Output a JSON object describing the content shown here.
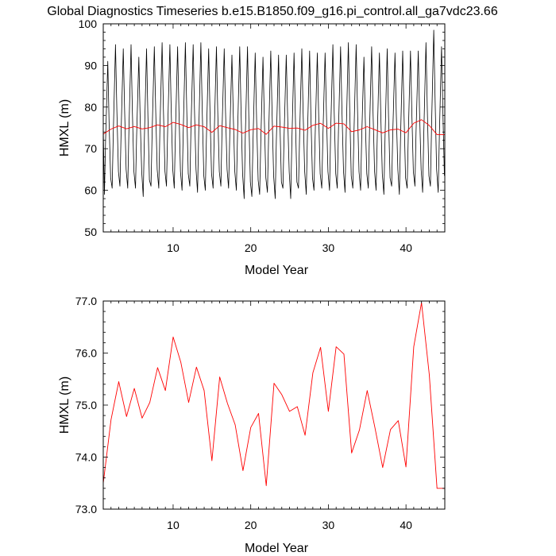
{
  "title": "Global Diagnostics Timeseries b.e15.B1850.f09_g16.pi_control.all_ga7vdc23.66",
  "colors": {
    "monthly": "#000000",
    "annual": "#ff0000",
    "axes": "#000000"
  },
  "chart_data": [
    {
      "type": "line",
      "xlabel": "Model Year",
      "ylabel": "HMXL (m)",
      "xlim": [
        1,
        45
      ],
      "ylim": [
        50,
        100
      ],
      "x_ticks": [
        10,
        20,
        30,
        40
      ],
      "y_ticks": [
        50,
        60,
        70,
        80,
        90,
        100
      ],
      "y_tick_labels": [
        "50",
        "60",
        "70",
        "80",
        "90",
        "100"
      ],
      "grid": false,
      "series": [
        {
          "color": "#000000",
          "seasonal_cycle": {
            "peaks": [
              91.0,
              95.0,
              94.0,
              95.0,
              92.0,
              94.0,
              94.5,
              95.5,
              95.0,
              94.5,
              95.5,
              95.0,
              95.5,
              94.0,
              94.5,
              94.0,
              92.5,
              94.5,
              94.5,
              93.0,
              92.0,
              93.5,
              92.5,
              92.5,
              93.0,
              94.0,
              93.5,
              93.0,
              93.0,
              95.0,
              94.5,
              95.5,
              95.0,
              92.0,
              94.5,
              93.0,
              94.0,
              93.0,
              93.5,
              93.5,
              93.5,
              95.5,
              98.5,
              94.5,
              91.0
            ],
            "troughs": [
              59.0,
              60.5,
              61.0,
              60.5,
              60.5,
              58.5,
              61.0,
              60.5,
              61.0,
              60.5,
              60.0,
              61.0,
              59.5,
              60.0,
              60.5,
              61.0,
              60.5,
              60.0,
              58.0,
              58.5,
              59.0,
              59.5,
              58.0,
              60.5,
              58.0,
              60.5,
              59.0,
              60.0,
              60.5,
              60.0,
              60.5,
              59.5,
              60.5,
              60.0,
              60.5,
              60.0,
              59.0,
              61.0,
              59.0,
              60.5,
              61.0,
              59.5,
              61.0,
              59.5,
              58.5
            ]
          }
        },
        {
          "color": "#ff0000",
          "x": [
            1,
            2,
            3,
            4,
            5,
            6,
            7,
            8,
            9,
            10,
            11,
            12,
            13,
            14,
            15,
            16,
            17,
            18,
            19,
            20,
            21,
            22,
            23,
            24,
            25,
            26,
            27,
            28,
            29,
            30,
            31,
            32,
            33,
            34,
            35,
            36,
            37,
            38,
            39,
            40,
            41,
            42,
            43,
            44,
            45
          ],
          "values": [
            73.5,
            74.72,
            75.45,
            74.78,
            75.32,
            74.75,
            75.05,
            75.72,
            75.28,
            76.31,
            75.82,
            75.05,
            75.73,
            75.28,
            73.93,
            75.54,
            75.03,
            74.62,
            73.74,
            74.57,
            74.84,
            73.45,
            75.42,
            75.2,
            74.88,
            74.97,
            74.42,
            75.62,
            76.11,
            74.88,
            76.12,
            75.98,
            74.08,
            74.52,
            75.28,
            74.57,
            73.8,
            74.53,
            74.7,
            73.81,
            76.12,
            76.97,
            75.58,
            73.4,
            73.4
          ]
        }
      ]
    },
    {
      "type": "line",
      "xlabel": "Model Year",
      "ylabel": "HMXL (m)",
      "xlim": [
        1,
        45
      ],
      "ylim": [
        73,
        77
      ],
      "x_ticks": [
        10,
        20,
        30,
        40
      ],
      "y_ticks": [
        73,
        74,
        75,
        76,
        77
      ],
      "y_tick_labels": [
        "73.0",
        "74.0",
        "75.0",
        "76.0",
        "77.0"
      ],
      "grid": false,
      "series": [
        {
          "color": "#ff0000",
          "x": [
            1,
            2,
            3,
            4,
            5,
            6,
            7,
            8,
            9,
            10,
            11,
            12,
            13,
            14,
            15,
            16,
            17,
            18,
            19,
            20,
            21,
            22,
            23,
            24,
            25,
            26,
            27,
            28,
            29,
            30,
            31,
            32,
            33,
            34,
            35,
            36,
            37,
            38,
            39,
            40,
            41,
            42,
            43,
            44,
            45
          ],
          "values": [
            73.5,
            74.72,
            75.45,
            74.78,
            75.32,
            74.75,
            75.05,
            75.72,
            75.28,
            76.31,
            75.82,
            75.05,
            75.73,
            75.28,
            73.93,
            75.54,
            75.03,
            74.62,
            73.74,
            74.57,
            74.84,
            73.45,
            75.42,
            75.2,
            74.88,
            74.97,
            74.42,
            75.62,
            76.11,
            74.88,
            76.12,
            75.98,
            74.08,
            74.52,
            75.28,
            74.57,
            73.8,
            74.53,
            74.7,
            73.81,
            76.12,
            76.97,
            75.58,
            73.4,
            73.4
          ]
        }
      ]
    }
  ]
}
